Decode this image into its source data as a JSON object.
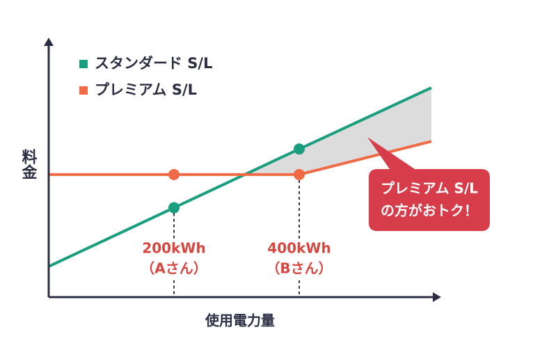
{
  "chart_data": {
    "type": "line",
    "xlabel": "使用電力量",
    "ylabel": "料金",
    "xlim": [
      0,
      611
    ],
    "ylim": [
      0,
      100
    ],
    "series": [
      {
        "name": "スタンダード S/L",
        "color": "#1a9e7f",
        "x": [
          0,
          200,
          400,
          611
        ],
        "values": [
          12,
          35,
          58,
          82
        ]
      },
      {
        "name": "プレミアム S/L",
        "color": "#ef6a45",
        "x": [
          0,
          200,
          400,
          611
        ],
        "values": [
          48,
          48,
          48,
          61
        ]
      }
    ],
    "annotations": [
      {
        "x": 200,
        "label": "200kWh",
        "sub": "（Aさん）"
      },
      {
        "x": 400,
        "label": "400kWh",
        "sub": "（Bさん）"
      }
    ],
    "callout": {
      "line1": "プレミアム S/L",
      "line2": "の方がおトク！",
      "color": "#d63c4a"
    },
    "shade_color": "#dcdcdc"
  }
}
